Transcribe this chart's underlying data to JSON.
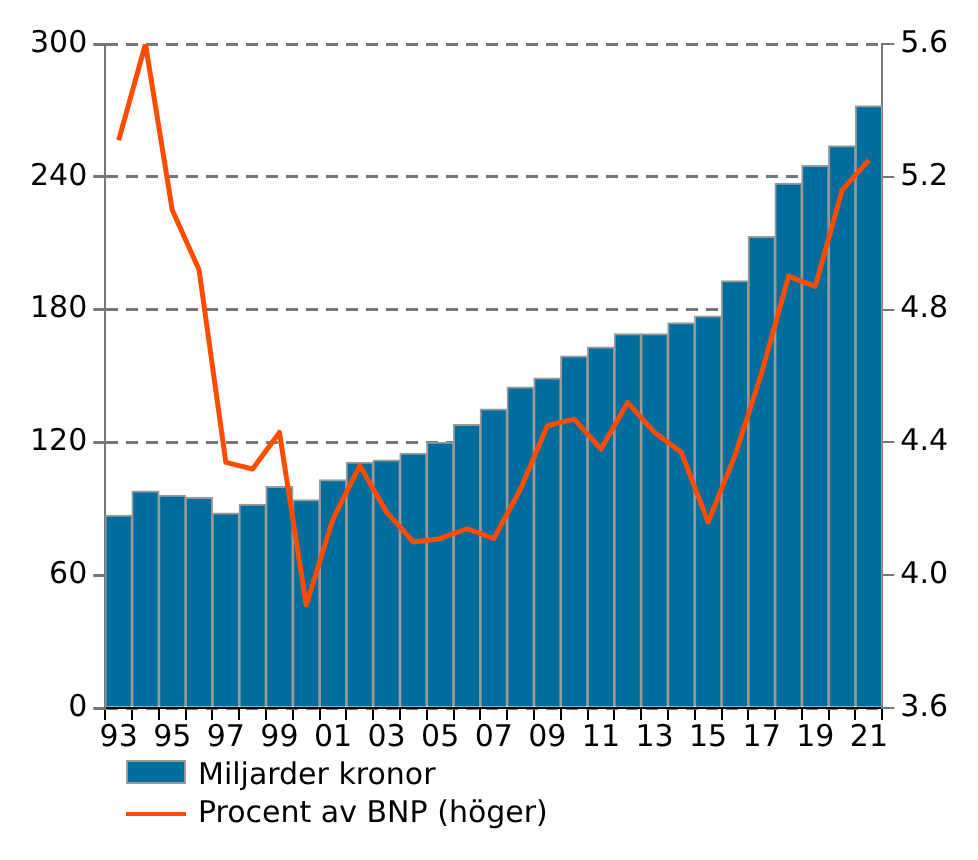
{
  "chart_data": {
    "type": "bar",
    "categories": [
      "93",
      null,
      "95",
      null,
      "97",
      null,
      "99",
      null,
      "01",
      null,
      "03",
      null,
      "05",
      null,
      "07",
      null,
      "09",
      null,
      "11",
      null,
      "13",
      null,
      "15",
      null,
      "17",
      null,
      "19",
      null,
      "21"
    ],
    "series": [
      {
        "name": "Miljarder kronor",
        "color": "#006e9c",
        "values": [
          87,
          98,
          96,
          95,
          88,
          92,
          100,
          94,
          103,
          111,
          112,
          115,
          120,
          128,
          135,
          145,
          149,
          159,
          163,
          169,
          169,
          174,
          177,
          193,
          213,
          237,
          245,
          254,
          272
        ]
      },
      {
        "name": "Procent av BNP (höger)",
        "type": "line",
        "axis": "y2",
        "color": "#ff4c00",
        "values": [
          5.31,
          5.6,
          5.1,
          4.92,
          4.34,
          4.32,
          4.43,
          3.91,
          4.17,
          4.33,
          4.19,
          4.1,
          4.11,
          4.14,
          4.11,
          4.26,
          4.45,
          4.47,
          4.38,
          4.52,
          4.43,
          4.37,
          4.16,
          4.36,
          4.61,
          4.9,
          4.87,
          5.16,
          5.25
        ]
      }
    ],
    "ylim": [
      0,
      300
    ],
    "yticks": [
      0,
      60,
      120,
      180,
      240,
      300
    ],
    "y2lim": [
      3.6,
      5.6
    ],
    "y2ticks": [
      3.6,
      {
        "value": 4,
        "label": "4.0"
      },
      4.4,
      4.8,
      5.2,
      5.6
    ],
    "grid": "y",
    "legend": "bottom left",
    "marker": "none",
    "line_style": "solid"
  }
}
